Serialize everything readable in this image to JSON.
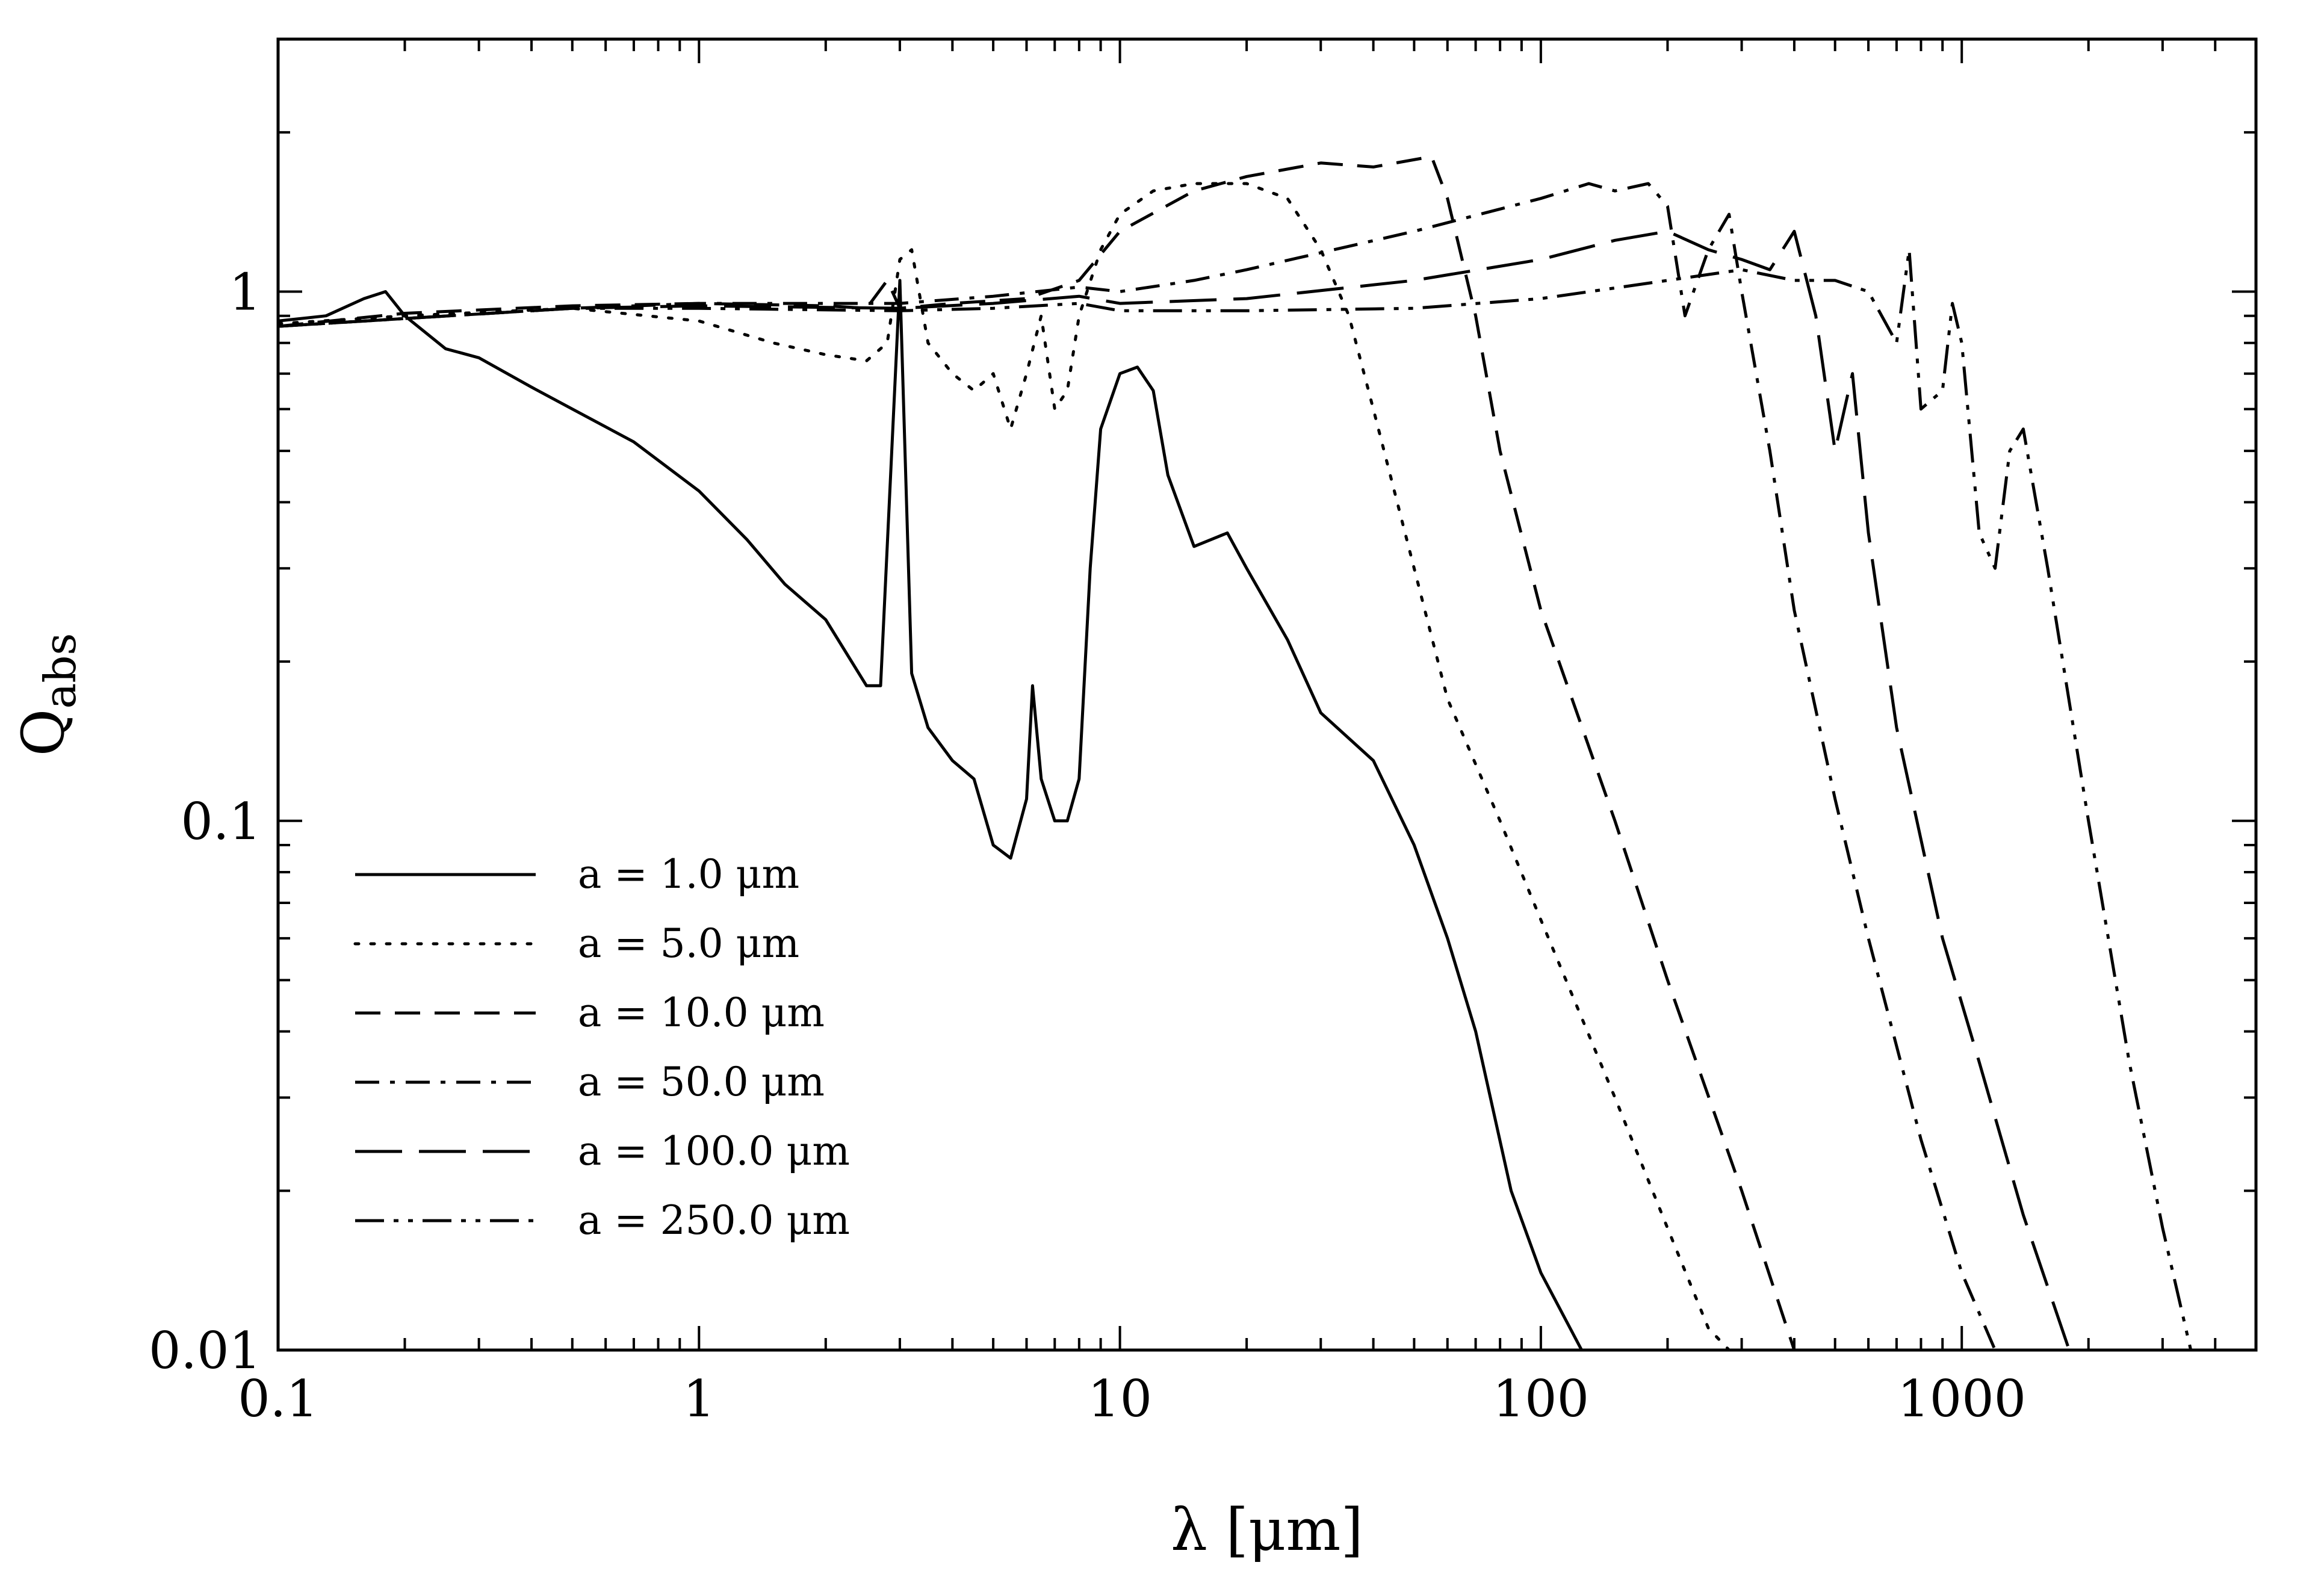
{
  "chart_data": {
    "type": "line",
    "title": "",
    "xlabel": "λ  [μm]",
    "ylabel": "Q",
    "ylabel_sub": "abs",
    "xscale": "log",
    "yscale": "log",
    "xlim": [
      0.1,
      5000
    ],
    "ylim": [
      0.01,
      3
    ],
    "xticks": [
      {
        "value": 0.1,
        "label": "0.1"
      },
      {
        "value": 1,
        "label": "1"
      },
      {
        "value": 10,
        "label": "10"
      },
      {
        "value": 100,
        "label": "100"
      },
      {
        "value": 1000,
        "label": "1000"
      }
    ],
    "yticks": [
      {
        "value": 0.01,
        "label": "0.01"
      },
      {
        "value": 0.1,
        "label": "0.1"
      },
      {
        "value": 1,
        "label": "1"
      }
    ],
    "legend_position": "lower-left",
    "series": [
      {
        "name": "a  =  1.0  μm",
        "dash": "solid",
        "points": [
          [
            0.1,
            0.88
          ],
          [
            0.13,
            0.9
          ],
          [
            0.16,
            0.97
          ],
          [
            0.18,
            1.0
          ],
          [
            0.2,
            0.9
          ],
          [
            0.25,
            0.78
          ],
          [
            0.3,
            0.75
          ],
          [
            0.4,
            0.66
          ],
          [
            0.5,
            0.6
          ],
          [
            0.7,
            0.52
          ],
          [
            1.0,
            0.42
          ],
          [
            1.3,
            0.34
          ],
          [
            1.6,
            0.28
          ],
          [
            2.0,
            0.24
          ],
          [
            2.5,
            0.18
          ],
          [
            2.7,
            0.18
          ],
          [
            3.0,
            1.05
          ],
          [
            3.2,
            0.19
          ],
          [
            3.5,
            0.15
          ],
          [
            4.0,
            0.13
          ],
          [
            4.5,
            0.12
          ],
          [
            5.0,
            0.09
          ],
          [
            5.5,
            0.085
          ],
          [
            6.0,
            0.11
          ],
          [
            6.2,
            0.18
          ],
          [
            6.5,
            0.12
          ],
          [
            7.0,
            0.1
          ],
          [
            7.5,
            0.1
          ],
          [
            8.0,
            0.12
          ],
          [
            8.5,
            0.3
          ],
          [
            9.0,
            0.55
          ],
          [
            10.0,
            0.7
          ],
          [
            11.0,
            0.72
          ],
          [
            12.0,
            0.65
          ],
          [
            13.0,
            0.45
          ],
          [
            15.0,
            0.33
          ],
          [
            18.0,
            0.35
          ],
          [
            20.0,
            0.3
          ],
          [
            25.0,
            0.22
          ],
          [
            30.0,
            0.16
          ],
          [
            40.0,
            0.13
          ],
          [
            50.0,
            0.09
          ],
          [
            60.0,
            0.06
          ],
          [
            70.0,
            0.04
          ],
          [
            85.0,
            0.02
          ],
          [
            100.0,
            0.014
          ],
          [
            125.0,
            0.01
          ]
        ]
      },
      {
        "name": "a  =  5.0  μm",
        "dash": "dotted",
        "points": [
          [
            0.1,
            0.87
          ],
          [
            0.2,
            0.9
          ],
          [
            0.5,
            0.93
          ],
          [
            1.0,
            0.88
          ],
          [
            1.5,
            0.8
          ],
          [
            2.0,
            0.76
          ],
          [
            2.5,
            0.74
          ],
          [
            2.8,
            0.8
          ],
          [
            3.0,
            1.15
          ],
          [
            3.2,
            1.2
          ],
          [
            3.5,
            0.8
          ],
          [
            4.0,
            0.7
          ],
          [
            4.5,
            0.65
          ],
          [
            5.0,
            0.7
          ],
          [
            5.5,
            0.55
          ],
          [
            6.0,
            0.7
          ],
          [
            6.5,
            0.9
          ],
          [
            7.0,
            0.6
          ],
          [
            7.5,
            0.65
          ],
          [
            8.0,
            0.9
          ],
          [
            9.0,
            1.2
          ],
          [
            10.0,
            1.4
          ],
          [
            12.0,
            1.55
          ],
          [
            15.0,
            1.6
          ],
          [
            20.0,
            1.6
          ],
          [
            25.0,
            1.5
          ],
          [
            30.0,
            1.2
          ],
          [
            35.0,
            0.9
          ],
          [
            40.0,
            0.6
          ],
          [
            50.0,
            0.3
          ],
          [
            60.0,
            0.17
          ],
          [
            80.0,
            0.1
          ],
          [
            100.0,
            0.065
          ],
          [
            150.0,
            0.03
          ],
          [
            200.0,
            0.017
          ],
          [
            250.0,
            0.011
          ],
          [
            280.0,
            0.01
          ]
        ]
      },
      {
        "name": "a  =  10.0  μm",
        "dash": "dashed",
        "points": [
          [
            0.1,
            0.86
          ],
          [
            0.2,
            0.91
          ],
          [
            0.5,
            0.94
          ],
          [
            1.0,
            0.95
          ],
          [
            2.0,
            0.94
          ],
          [
            2.5,
            0.93
          ],
          [
            2.8,
            1.05
          ],
          [
            3.0,
            0.93
          ],
          [
            4.0,
            0.95
          ],
          [
            6.0,
            0.97
          ],
          [
            8.0,
            1.05
          ],
          [
            10.0,
            1.3
          ],
          [
            15.0,
            1.55
          ],
          [
            20.0,
            1.65
          ],
          [
            30.0,
            1.75
          ],
          [
            40.0,
            1.72
          ],
          [
            55.0,
            1.8
          ],
          [
            60.0,
            1.5
          ],
          [
            70.0,
            0.9
          ],
          [
            80.0,
            0.5
          ],
          [
            100.0,
            0.25
          ],
          [
            150.0,
            0.1
          ],
          [
            200.0,
            0.05
          ],
          [
            300.0,
            0.02
          ],
          [
            400.0,
            0.01
          ]
        ]
      },
      {
        "name": "a  =  50.0  μm",
        "dash": "dashdot",
        "points": [
          [
            0.1,
            0.86
          ],
          [
            0.5,
            0.93
          ],
          [
            1.0,
            0.95
          ],
          [
            3.0,
            0.95
          ],
          [
            5.0,
            0.98
          ],
          [
            8.0,
            1.02
          ],
          [
            10.0,
            1.0
          ],
          [
            15.0,
            1.05
          ],
          [
            20.0,
            1.1
          ],
          [
            50.0,
            1.3
          ],
          [
            100.0,
            1.5
          ],
          [
            130.0,
            1.6
          ],
          [
            150.0,
            1.55
          ],
          [
            180.0,
            1.6
          ],
          [
            200.0,
            1.45
          ],
          [
            220.0,
            0.9
          ],
          [
            250.0,
            1.2
          ],
          [
            280.0,
            1.4
          ],
          [
            300.0,
            1.0
          ],
          [
            350.0,
            0.5
          ],
          [
            400.0,
            0.25
          ],
          [
            500.0,
            0.11
          ],
          [
            600.0,
            0.06
          ],
          [
            800.0,
            0.025
          ],
          [
            1000.0,
            0.014
          ],
          [
            1200.0,
            0.01
          ]
        ]
      },
      {
        "name": "a  =  100.0  μm",
        "dash": "longdash",
        "points": [
          [
            0.1,
            0.86
          ],
          [
            0.5,
            0.93
          ],
          [
            1.0,
            0.94
          ],
          [
            3.0,
            0.93
          ],
          [
            5.0,
            0.95
          ],
          [
            8.0,
            0.98
          ],
          [
            10.0,
            0.95
          ],
          [
            20.0,
            0.97
          ],
          [
            50.0,
            1.05
          ],
          [
            100.0,
            1.15
          ],
          [
            150.0,
            1.25
          ],
          [
            200.0,
            1.3
          ],
          [
            250.0,
            1.2
          ],
          [
            300.0,
            1.15
          ],
          [
            350.0,
            1.1
          ],
          [
            400.0,
            1.3
          ],
          [
            450.0,
            0.9
          ],
          [
            500.0,
            0.5
          ],
          [
            550.0,
            0.7
          ],
          [
            600.0,
            0.35
          ],
          [
            700.0,
            0.15
          ],
          [
            900.0,
            0.06
          ],
          [
            1100.0,
            0.035
          ],
          [
            1400.0,
            0.018
          ],
          [
            1800.0,
            0.01
          ]
        ]
      },
      {
        "name": "a  =  250.0  μm",
        "dash": "dashdotdot",
        "points": [
          [
            0.1,
            0.86
          ],
          [
            0.5,
            0.93
          ],
          [
            1.0,
            0.93
          ],
          [
            3.0,
            0.92
          ],
          [
            5.0,
            0.93
          ],
          [
            8.0,
            0.95
          ],
          [
            10.0,
            0.92
          ],
          [
            20.0,
            0.92
          ],
          [
            50.0,
            0.93
          ],
          [
            100.0,
            0.97
          ],
          [
            200.0,
            1.05
          ],
          [
            300.0,
            1.1
          ],
          [
            400.0,
            1.05
          ],
          [
            500.0,
            1.05
          ],
          [
            600.0,
            1.0
          ],
          [
            700.0,
            0.8
          ],
          [
            750.0,
            1.2
          ],
          [
            800.0,
            0.6
          ],
          [
            900.0,
            0.65
          ],
          [
            950.0,
            0.95
          ],
          [
            1000.0,
            0.8
          ],
          [
            1100.0,
            0.35
          ],
          [
            1200.0,
            0.3
          ],
          [
            1300.0,
            0.5
          ],
          [
            1400.0,
            0.55
          ],
          [
            1600.0,
            0.3
          ],
          [
            2000.0,
            0.1
          ],
          [
            2500.0,
            0.035
          ],
          [
            3000.0,
            0.017
          ],
          [
            3500.0,
            0.01
          ]
        ]
      }
    ]
  }
}
